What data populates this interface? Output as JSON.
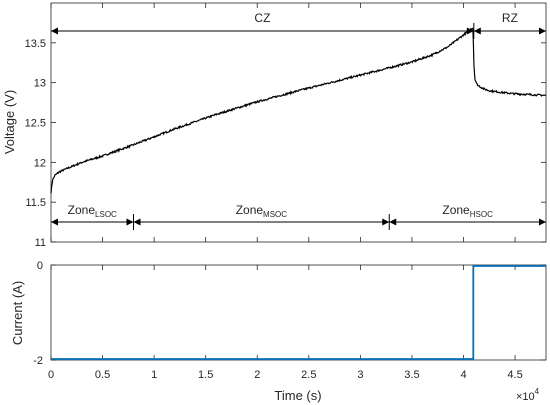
{
  "chart_data": [
    {
      "type": "line",
      "ylabel": "Voltage (V)",
      "xlim": [
        0,
        48000
      ],
      "ylim": [
        11,
        14
      ],
      "y_ticks": [
        "11",
        "11.5",
        "12",
        "12.5",
        "13",
        "13.5"
      ],
      "x_tick_values": [
        0,
        5000,
        10000,
        15000,
        20000,
        25000,
        30000,
        35000,
        40000,
        45000
      ],
      "series": [
        {
          "color": "#000000",
          "x": [
            0,
            150,
            400,
            800,
            1500,
            3000,
            5000,
            8000,
            12000,
            16000,
            20000,
            24000,
            28000,
            32000,
            35000,
            37000,
            38500,
            39500,
            40300,
            40800,
            40900,
            40950,
            41000,
            41100,
            41300,
            41600,
            42000,
            42500,
            43500,
            45000,
            46500,
            48000
          ],
          "y": [
            11.62,
            11.78,
            11.84,
            11.88,
            11.92,
            12.0,
            12.08,
            12.22,
            12.42,
            12.6,
            12.76,
            12.9,
            13.03,
            13.16,
            13.26,
            13.35,
            13.45,
            13.55,
            13.63,
            13.68,
            13.7,
            13.55,
            13.25,
            13.05,
            12.98,
            12.95,
            12.92,
            12.9,
            12.88,
            12.86,
            12.85,
            12.84
          ]
        }
      ],
      "annotations": {
        "regions": [
          {
            "label": "CZ",
            "x_start": 0,
            "x_end": 41000
          },
          {
            "label": "RZ",
            "x_start": 41000,
            "x_end": 48000
          }
        ],
        "zones": [
          {
            "base": "Zone",
            "sub": "LSOC",
            "x_start": 0,
            "x_end": 8000
          },
          {
            "base": "Zone",
            "sub": "MSOC",
            "x_start": 8000,
            "x_end": 32800
          },
          {
            "base": "Zone",
            "sub": "HSOC",
            "x_start": 32800,
            "x_end": 48000
          }
        ]
      }
    },
    {
      "type": "line",
      "xlabel": "Time (s)",
      "ylabel": "Current (A)",
      "xlim": [
        0,
        48000
      ],
      "ylim": [
        -2,
        0
      ],
      "x_ticks": [
        "0",
        "0.5",
        "1",
        "1.5",
        "2",
        "2.5",
        "3",
        "3.5",
        "4",
        "4.5"
      ],
      "x_tick_values": [
        0,
        5000,
        10000,
        15000,
        20000,
        25000,
        30000,
        35000,
        40000,
        45000
      ],
      "x_multiplier": "×10",
      "x_multiplier_exp": "4",
      "y_ticks": [
        "-2",
        "0"
      ],
      "series": [
        {
          "color": "#0072BD",
          "x": [
            0,
            40950,
            40950,
            48000
          ],
          "y": [
            -2,
            -2,
            0,
            0
          ]
        }
      ]
    }
  ]
}
